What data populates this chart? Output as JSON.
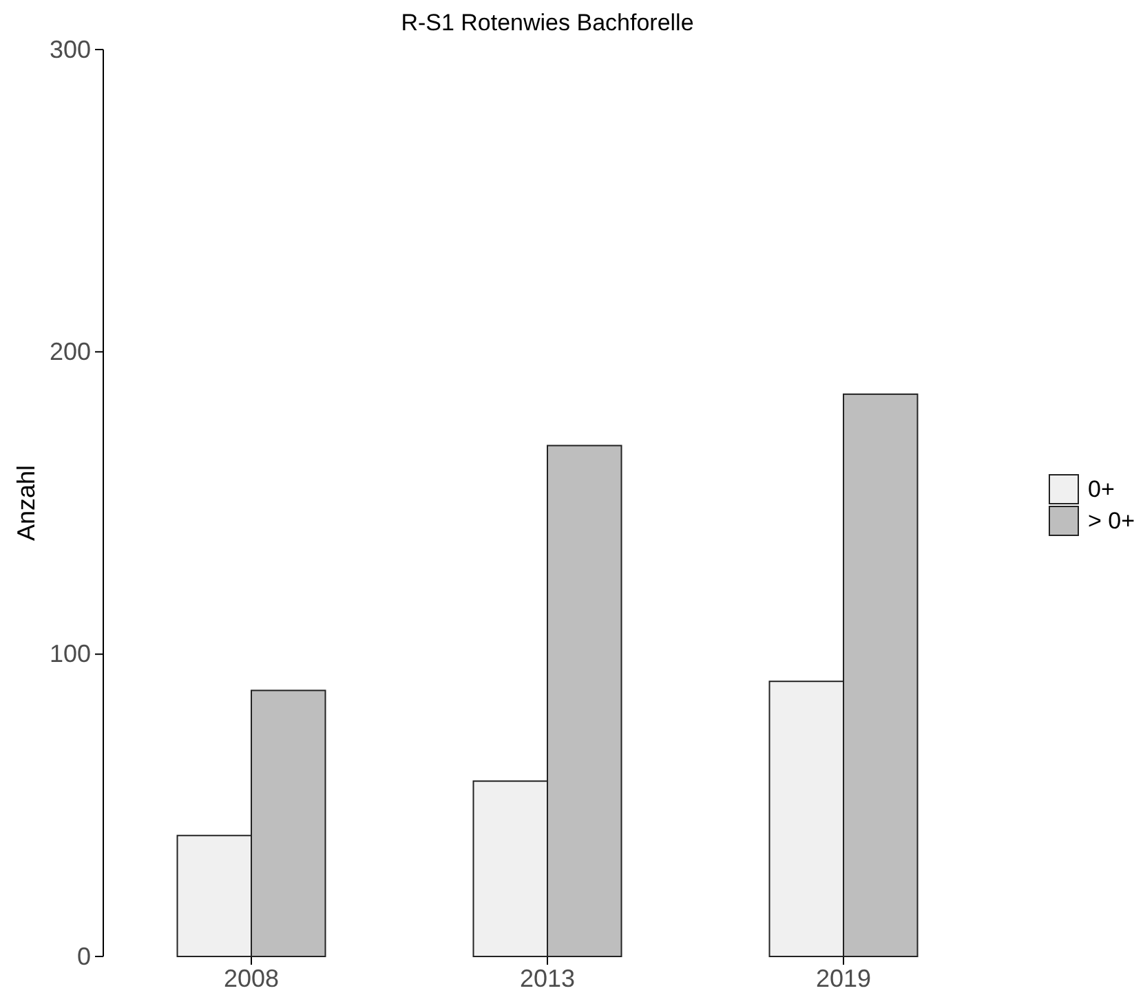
{
  "chart_data": {
    "type": "bar",
    "title": "R-S1 Rotenwies Bachforelle",
    "ylabel": "Anzahl",
    "categories": [
      "2008",
      "2013",
      "2019"
    ],
    "series": [
      {
        "name": "0+",
        "color": "#f0f0f0",
        "values": [
          40,
          58,
          91
        ]
      },
      {
        "name": "> 0+",
        "color": "#bebebe",
        "values": [
          88,
          169,
          186
        ]
      }
    ],
    "ylim": [
      0,
      300
    ],
    "yticks": [
      0,
      100,
      200,
      300
    ],
    "grid": false,
    "legend": "right"
  }
}
